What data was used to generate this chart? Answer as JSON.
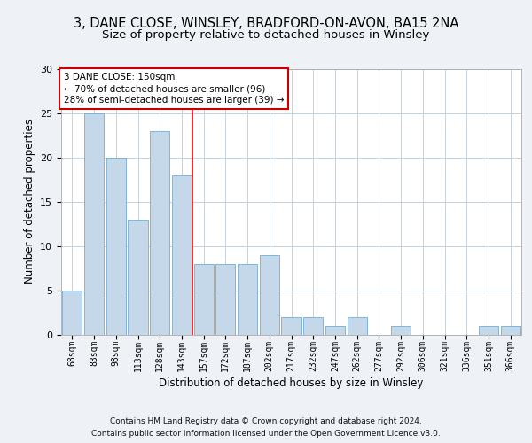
{
  "title1": "3, DANE CLOSE, WINSLEY, BRADFORD-ON-AVON, BA15 2NA",
  "title2": "Size of property relative to detached houses in Winsley",
  "xlabel": "Distribution of detached houses by size in Winsley",
  "ylabel": "Number of detached properties",
  "categories": [
    "68sqm",
    "83sqm",
    "98sqm",
    "113sqm",
    "128sqm",
    "143sqm",
    "157sqm",
    "172sqm",
    "187sqm",
    "202sqm",
    "217sqm",
    "232sqm",
    "247sqm",
    "262sqm",
    "277sqm",
    "292sqm",
    "306sqm",
    "321sqm",
    "336sqm",
    "351sqm",
    "366sqm"
  ],
  "values": [
    5,
    25,
    20,
    13,
    23,
    18,
    8,
    8,
    8,
    9,
    2,
    2,
    1,
    2,
    0,
    1,
    0,
    0,
    0,
    1,
    1
  ],
  "bar_color": "#c5d8ea",
  "bar_edge_color": "#7aaac8",
  "red_line_x": 5.5,
  "annotation_text": "3 DANE CLOSE: 150sqm\n← 70% of detached houses are smaller (96)\n28% of semi-detached houses are larger (39) →",
  "ann_box_facecolor": "#ffffff",
  "ann_box_edgecolor": "#cc0000",
  "ylim": [
    0,
    30
  ],
  "yticks": [
    0,
    5,
    10,
    15,
    20,
    25,
    30
  ],
  "footnote1": "Contains HM Land Registry data © Crown copyright and database right 2024.",
  "footnote2": "Contains public sector information licensed under the Open Government Licence v3.0.",
  "fig_facecolor": "#eef2f7",
  "plot_facecolor": "#ffffff",
  "grid_color": "#c8d0d8",
  "title1_fontsize": 10.5,
  "title2_fontsize": 9.5,
  "axis_label_fontsize": 8.5,
  "tick_fontsize": 7,
  "ann_fontsize": 7.5,
  "footnote_fontsize": 6.5
}
